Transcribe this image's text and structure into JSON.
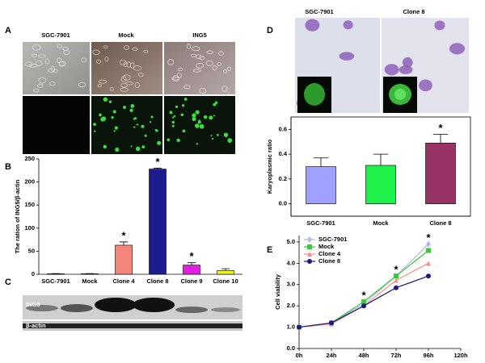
{
  "panel_labels": [
    "A",
    "B",
    "C",
    "D",
    "E"
  ],
  "panel_a": {
    "columns": [
      "SGC-7901",
      "Mock",
      "ING5"
    ]
  },
  "panel_c": {
    "bands": [
      "ING5",
      "β-actin"
    ]
  },
  "panel_d": {
    "columns": [
      "SGC-7901",
      "Clone 8"
    ]
  },
  "chart_data": [
    {
      "type": "bar",
      "y_label": "The ration of ING5/β-actin",
      "categories": [
        "SGC-7901",
        "Mock",
        "Clone 4",
        "Clone 8",
        "Clone 9",
        "Clone 10"
      ],
      "values": [
        1,
        1,
        63,
        228,
        20,
        8
      ],
      "errors": [
        0.5,
        0.5,
        7,
        2,
        5,
        4
      ],
      "colors": [
        "#ffffff",
        "#ffffff",
        "#f4857a",
        "#1c1c8e",
        "#e21ee2",
        "#f2f21a"
      ],
      "ylim": [
        0,
        250
      ],
      "yticks": [
        0,
        50,
        100,
        150,
        200,
        250
      ],
      "annotations": [
        {
          "text": "*",
          "category": "Clone 4"
        },
        {
          "text": "*",
          "category": "Clone 8"
        },
        {
          "text": "*",
          "category": "Clone 9"
        }
      ]
    },
    {
      "type": "bar",
      "y_label": "Karyoplasmic ratio",
      "frame": true,
      "categories": [
        "SGC-7901",
        "Mock",
        "Clone 8"
      ],
      "values": [
        0.3,
        0.31,
        0.49
      ],
      "errors": [
        0.07,
        0.09,
        0.07
      ],
      "colors": [
        "#a0a0ff",
        "#1ef24a",
        "#993366"
      ],
      "ylim": [
        -0.1,
        0.7
      ],
      "yticks": [
        {
          "value": 0,
          "label": "0.0"
        },
        0.2,
        0.4,
        0.6
      ],
      "annotations": [
        {
          "text": "*",
          "category": "Clone 8"
        }
      ]
    },
    {
      "type": "line",
      "y_label": "Cell viability",
      "legend": "top-left",
      "categories": [
        "0h",
        "24h",
        "48h",
        "72h",
        "96h",
        "120h"
      ],
      "series": [
        {
          "name": "SGC-7901",
          "color": "#b4b4f0",
          "marker": "diamond",
          "values": [
            1.0,
            1.2,
            2.1,
            3.4,
            4.9,
            null
          ]
        },
        {
          "name": "Mock",
          "color": "#33cc33",
          "marker": "square",
          "values": [
            1.0,
            1.2,
            2.2,
            3.4,
            4.6,
            null
          ]
        },
        {
          "name": "Clone 4",
          "color": "#ff8a8a",
          "marker": "triangle",
          "values": [
            1.0,
            1.15,
            2.0,
            3.2,
            4.0,
            null
          ]
        },
        {
          "name": "Clone 8",
          "color": "#1c1c80",
          "marker": "circle",
          "values": [
            1.0,
            1.2,
            2.0,
            2.85,
            3.4,
            null
          ]
        }
      ],
      "ylim": [
        0,
        5.3
      ],
      "yticks": [
        {
          "value": 0,
          "label": "0.0"
        },
        {
          "value": 1,
          "label": "1.0"
        },
        {
          "value": 2,
          "label": "2.0"
        },
        {
          "value": 3,
          "label": "3.0"
        },
        {
          "value": 4,
          "label": "4.0"
        },
        {
          "value": 5,
          "label": "5.0"
        }
      ],
      "annotations": [
        {
          "text": "*",
          "category": "48h"
        },
        {
          "text": "*",
          "category": "72h"
        },
        {
          "text": "*",
          "category": "96h"
        }
      ]
    }
  ]
}
